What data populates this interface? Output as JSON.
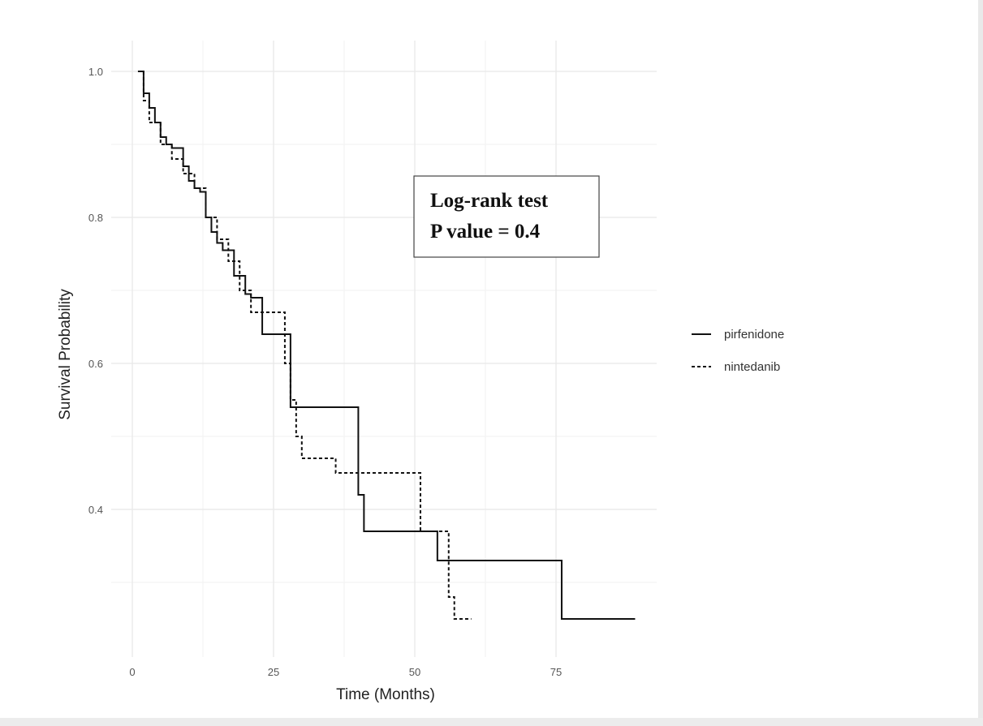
{
  "chart_data": {
    "type": "line",
    "step": true,
    "xlabel": "Time (Months)",
    "ylabel": "Survival Probability",
    "xlim": [
      0,
      90
    ],
    "ylim": [
      0.22,
      1.02
    ],
    "x_ticks": [
      0,
      25,
      50,
      75
    ],
    "x_tick_labels": [
      "0",
      "25",
      "50",
      "75"
    ],
    "y_ticks": [
      0.4,
      0.6,
      0.8,
      1.0
    ],
    "y_tick_labels": [
      "0.4",
      "0.6",
      "0.8",
      "1.0"
    ],
    "grid": true,
    "legend_position": "right",
    "annotation": {
      "lines": [
        "Log-rank test",
        "P value = 0.4"
      ]
    },
    "series": [
      {
        "name": "pirfenidone",
        "line_style": "solid",
        "color": "#111111",
        "x": [
          1,
          2,
          3,
          4,
          5,
          6,
          7,
          9,
          10,
          11,
          12,
          13,
          14,
          15,
          16,
          18,
          20,
          21,
          23,
          28,
          40,
          41,
          42,
          54,
          76,
          89
        ],
        "y": [
          1.0,
          0.97,
          0.95,
          0.93,
          0.91,
          0.9,
          0.895,
          0.87,
          0.85,
          0.84,
          0.835,
          0.8,
          0.78,
          0.765,
          0.755,
          0.72,
          0.695,
          0.69,
          0.64,
          0.54,
          0.42,
          0.37,
          0.37,
          0.33,
          0.25,
          0.25
        ]
      },
      {
        "name": "nintedanib",
        "line_style": "dashed",
        "color": "#111111",
        "x": [
          1,
          2,
          3,
          5,
          7,
          9,
          11,
          13,
          15,
          17,
          19,
          21,
          24,
          27,
          28,
          29,
          30,
          36,
          51,
          56,
          57,
          60
        ],
        "y": [
          1.0,
          0.96,
          0.93,
          0.9,
          0.88,
          0.86,
          0.84,
          0.8,
          0.77,
          0.74,
          0.7,
          0.67,
          0.67,
          0.6,
          0.55,
          0.5,
          0.47,
          0.45,
          0.37,
          0.28,
          0.25,
          0.25
        ]
      }
    ]
  }
}
